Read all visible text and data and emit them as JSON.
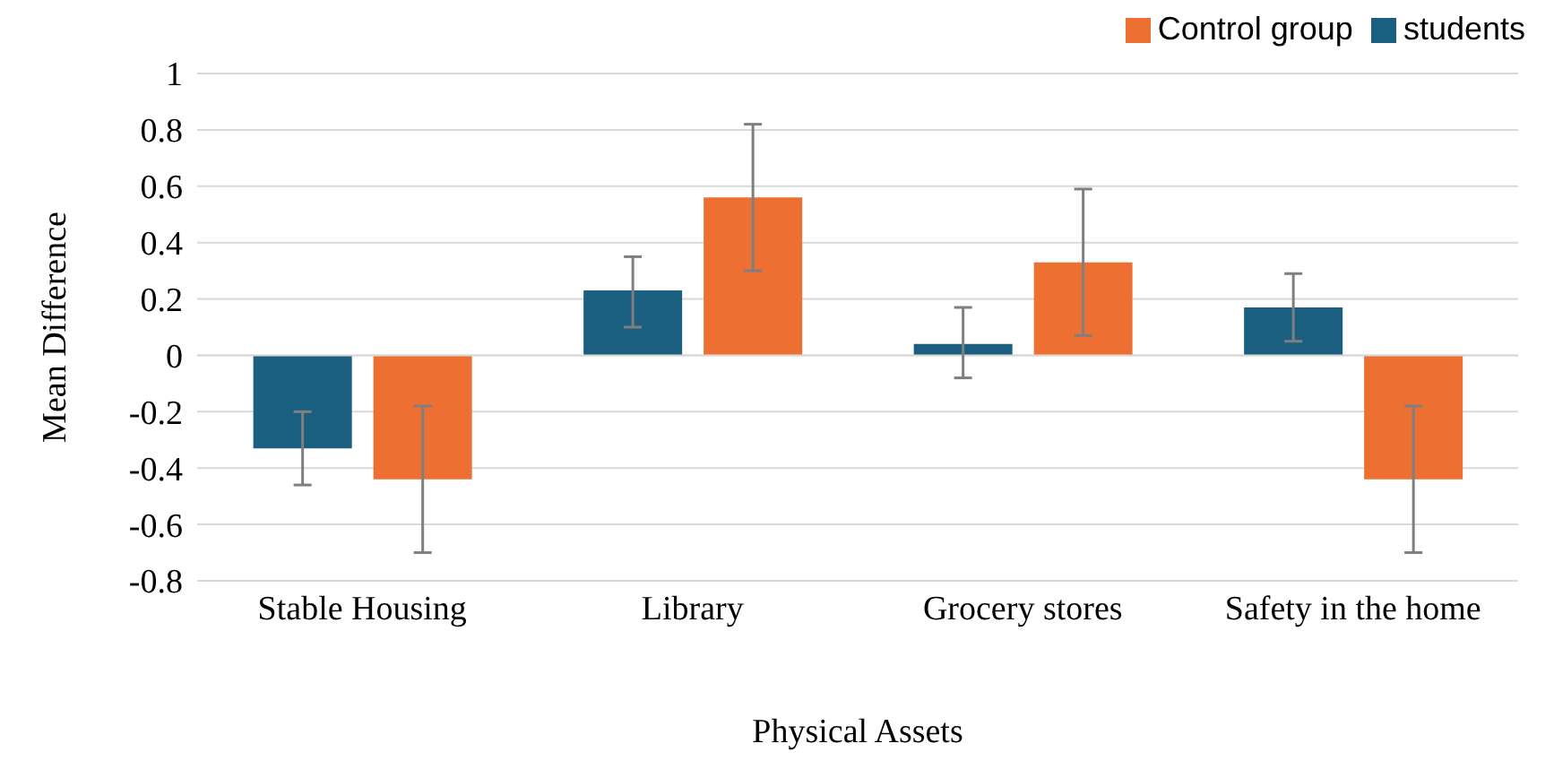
{
  "chart_data": {
    "type": "bar",
    "xlabel": "Physical Assets",
    "ylabel": "Mean Difference",
    "categories": [
      "Stable Housing",
      "Library",
      "Grocery stores",
      "Safety in the home"
    ],
    "series": [
      {
        "name": "students",
        "color": "#1a5f7f",
        "values": [
          -0.33,
          0.23,
          0.04,
          0.17
        ],
        "errors": [
          [
            -0.46,
            -0.2
          ],
          [
            0.1,
            0.35
          ],
          [
            -0.08,
            0.17
          ],
          [
            0.05,
            0.29
          ]
        ]
      },
      {
        "name": "Control group",
        "color": "#ed7032",
        "values": [
          -0.44,
          0.56,
          0.33,
          -0.44
        ],
        "errors": [
          [
            -0.7,
            -0.18
          ],
          [
            0.3,
            0.82
          ],
          [
            0.07,
            0.59
          ],
          [
            -0.7,
            -0.18
          ]
        ]
      }
    ],
    "ylim": [
      -0.8,
      1
    ],
    "yticks": [
      -0.8,
      -0.6,
      -0.4,
      -0.2,
      0,
      0.2,
      0.4,
      0.6,
      0.8,
      1
    ],
    "grid": "y",
    "legend": "top right"
  }
}
